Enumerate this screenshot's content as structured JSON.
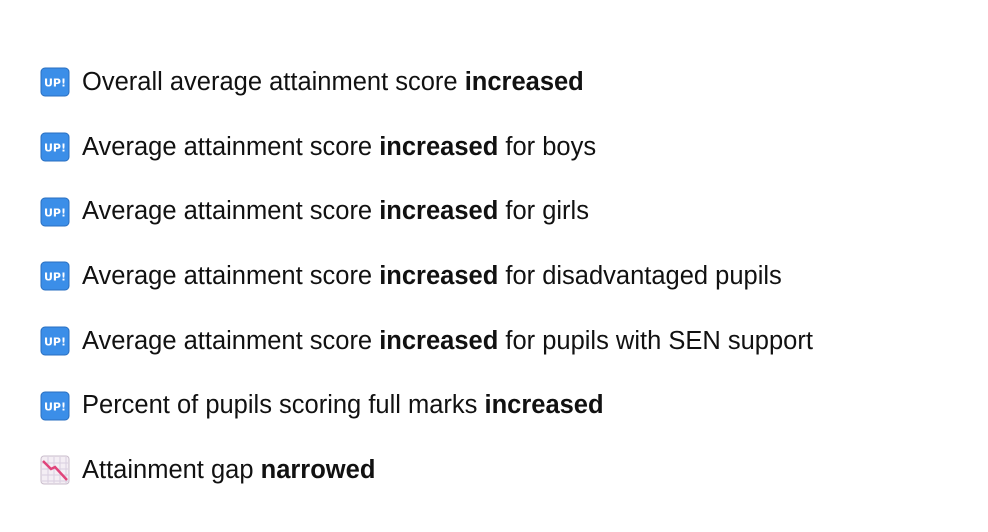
{
  "items": [
    {
      "icon_label": "UP!",
      "before": "Overall average attainment score ",
      "emphasis": "increased"
    },
    {
      "icon_label": "UP!",
      "before": "Average attainment score ",
      "emphasis": "increased",
      "after": " for boys"
    },
    {
      "icon_label": "UP!",
      "before": "Average attainment score ",
      "emphasis": "increased",
      "after": " for girls"
    },
    {
      "icon_label": "UP!",
      "before": "Average attainment score ",
      "emphasis": "increased",
      "after": " for disadvantaged pupils"
    },
    {
      "icon_label": "UP!",
      "before": "Average attainment score ",
      "emphasis": "increased",
      "after": " for pupils with SEN support"
    },
    {
      "icon_label": "UP!",
      "before": "Percent of pupils scoring full marks ",
      "emphasis": "increased"
    },
    {
      "before": "Attainment gap ",
      "emphasis": "narrowed"
    }
  ]
}
